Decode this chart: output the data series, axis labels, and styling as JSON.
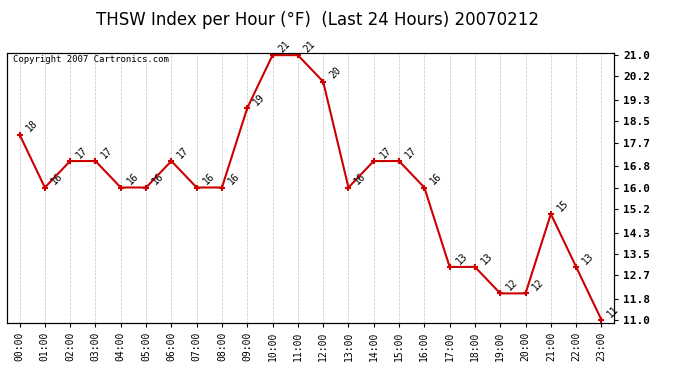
{
  "title": "THSW Index per Hour (°F)  (Last 24 Hours) 20070212",
  "copyright": "Copyright 2007 Cartronics.com",
  "hours": [
    "00:00",
    "01:00",
    "02:00",
    "03:00",
    "04:00",
    "05:00",
    "06:00",
    "07:00",
    "08:00",
    "09:00",
    "10:00",
    "11:00",
    "12:00",
    "13:00",
    "14:00",
    "15:00",
    "16:00",
    "17:00",
    "18:00",
    "19:00",
    "20:00",
    "21:00",
    "22:00",
    "23:00"
  ],
  "values": [
    18,
    16,
    17,
    17,
    16,
    16,
    17,
    16,
    16,
    19,
    21,
    21,
    20,
    16,
    17,
    17,
    16,
    13,
    13,
    12,
    12,
    15,
    13,
    11
  ],
  "yticks": [
    11.0,
    11.8,
    12.7,
    13.5,
    14.3,
    15.2,
    16.0,
    16.8,
    17.7,
    18.5,
    19.3,
    20.2,
    21.0
  ],
  "line_color": "#cc0000",
  "marker": "+",
  "bg_color": "#ffffff",
  "grid_color": "#999999",
  "title_fontsize": 12,
  "label_fontsize": 7,
  "annotation_fontsize": 7,
  "copyright_fontsize": 6.5
}
